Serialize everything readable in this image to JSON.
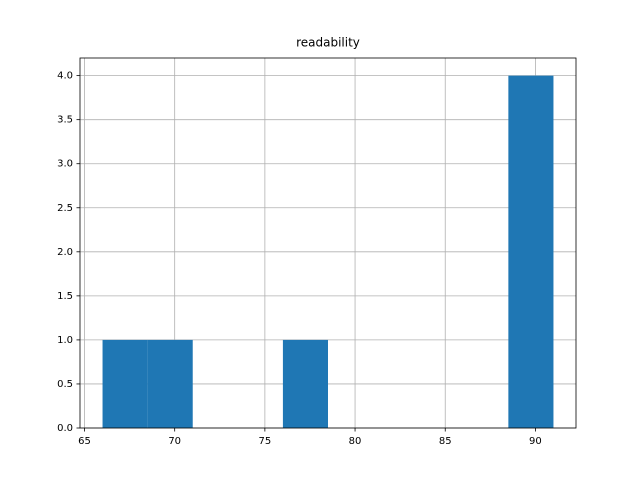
{
  "chart_data": {
    "type": "histogram",
    "title": "readability",
    "bins": [
      66,
      68.5,
      71,
      73.5,
      76,
      78.5,
      81,
      83.5,
      86,
      88.5,
      91
    ],
    "values": [
      1,
      1,
      0,
      0,
      1,
      0,
      0,
      0,
      0,
      4
    ],
    "color": "#1f77b4",
    "xlim": [
      64.75,
      92.25
    ],
    "xticks": [
      65,
      70,
      75,
      80,
      85,
      90
    ],
    "ylim": [
      0,
      4.2
    ],
    "yticks": [
      {
        "value": 0,
        "label": "0.0"
      },
      0.5,
      {
        "value": 1,
        "label": "1.0"
      },
      1.5,
      {
        "value": 2,
        "label": "2.0"
      },
      2.5,
      {
        "value": 3,
        "label": "3.0"
      },
      3.5,
      {
        "value": 4,
        "label": "4.0"
      }
    ],
    "grid": true
  }
}
